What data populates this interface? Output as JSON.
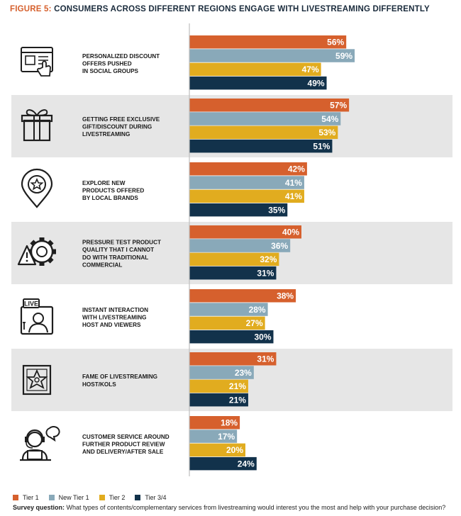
{
  "figure_label": "FIGURE 5:",
  "title": "CONSUMERS ACROSS DIFFERENT REGIONS ENGAGE WITH LIVESTREAMING DIFFERENTLY",
  "colors": {
    "Tier 1": "#d6602d",
    "New Tier 1": "#89a9b9",
    "Tier 2": "#e1ac1f",
    "Tier 3/4": "#12324b"
  },
  "chart_data": {
    "type": "bar",
    "orientation": "horizontal",
    "categories": [
      "PERSONALIZED DISCOUNT OFFERS PUSHED IN SOCIAL GROUPS",
      "GETTING FREE EXCLUSIVE GIFT/DISCOUNT DURING LIVESTREAMING",
      "EXPLORE NEW PRODUCTS OFFERED BY LOCAL BRANDS",
      "PRESSURE TEST PRODUCT QUALITY THAT I CANNOT DO WITH TRADITIONAL COMMERCIAL",
      "INSTANT INTERACTION WITH LIVESTREAMING HOST AND VIEWERS",
      "FAME OF LIVESTREAMING HOST/KOLS",
      "CUSTOMER SERVICE AROUND FURTHER PRODUCT REVIEW AND DELIVERY/AFTER SALE"
    ],
    "category_lines": [
      [
        "PERSONALIZED DISCOUNT",
        "OFFERS PUSHED",
        "IN SOCIAL GROUPS"
      ],
      [
        "GETTING FREE EXCLUSIVE",
        "GIFT/DISCOUNT DURING",
        "LIVESTREAMING"
      ],
      [
        "EXPLORE NEW",
        "PRODUCTS OFFERED",
        "BY LOCAL BRANDS"
      ],
      [
        "PRESSURE TEST PRODUCT",
        "QUALITY THAT I CANNOT",
        "DO WITH TRADITIONAL",
        "COMMERCIAL"
      ],
      [
        "INSTANT INTERACTION",
        "WITH LIVESTREAMING",
        "HOST AND VIEWERS"
      ],
      [
        "FAME OF LIVESTREAMING",
        "HOST/KOLS"
      ],
      [
        "CUSTOMER SERVICE AROUND",
        "FURTHER PRODUCT REVIEW",
        "AND DELIVERY/AFTER SALE"
      ]
    ],
    "icons": [
      "browser-cart-icon",
      "gift-box-icon",
      "location-star-icon",
      "warning-gear-icon",
      "live-host-icon",
      "star-plaque-icon",
      "customer-service-icon"
    ],
    "series": [
      {
        "name": "Tier 1",
        "values": [
          56,
          57,
          42,
          40,
          38,
          31,
          18
        ]
      },
      {
        "name": "New Tier 1",
        "values": [
          59,
          54,
          41,
          36,
          28,
          23,
          17
        ]
      },
      {
        "name": "Tier 2",
        "values": [
          47,
          53,
          41,
          32,
          27,
          21,
          20
        ]
      },
      {
        "name": "Tier 3/4",
        "values": [
          49,
          51,
          35,
          31,
          30,
          21,
          24
        ]
      }
    ],
    "value_suffix": "%",
    "legend_position": "bottom-left",
    "alternating_row_shading": true
  },
  "footnote": {
    "label": "Survey question:",
    "text": "What types of contents/complementary services from livestreaming would interest you the most and help with your purchase decision?"
  }
}
